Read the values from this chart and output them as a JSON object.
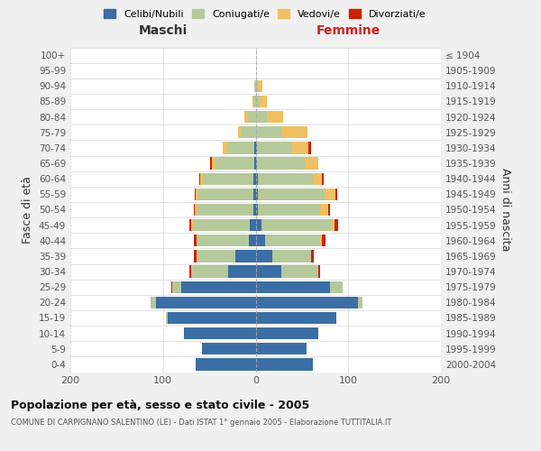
{
  "age_groups": [
    "0-4",
    "5-9",
    "10-14",
    "15-19",
    "20-24",
    "25-29",
    "30-34",
    "35-39",
    "40-44",
    "45-49",
    "50-54",
    "55-59",
    "60-64",
    "65-69",
    "70-74",
    "75-79",
    "80-84",
    "85-89",
    "90-94",
    "95-99",
    "100+"
  ],
  "birth_years": [
    "2000-2004",
    "1995-1999",
    "1990-1994",
    "1985-1989",
    "1980-1984",
    "1975-1979",
    "1970-1974",
    "1965-1969",
    "1960-1964",
    "1955-1959",
    "1950-1954",
    "1945-1949",
    "1940-1944",
    "1935-1939",
    "1930-1934",
    "1925-1929",
    "1920-1924",
    "1915-1919",
    "1910-1914",
    "1905-1909",
    "≤ 1904"
  ],
  "maschi_celibi": [
    65,
    58,
    77,
    95,
    108,
    80,
    30,
    22,
    7,
    6,
    2,
    2,
    2,
    1,
    1,
    0,
    0,
    0,
    0,
    0,
    0
  ],
  "maschi_coniugati": [
    0,
    0,
    0,
    2,
    5,
    10,
    40,
    42,
    57,
    62,
    62,
    60,
    55,
    42,
    30,
    16,
    8,
    2,
    1,
    0,
    0
  ],
  "maschi_vedovi": [
    0,
    0,
    0,
    0,
    0,
    0,
    0,
    0,
    0,
    2,
    2,
    3,
    3,
    4,
    5,
    3,
    4,
    1,
    0,
    0,
    0
  ],
  "maschi_divorziati": [
    0,
    0,
    0,
    0,
    0,
    1,
    2,
    3,
    3,
    2,
    1,
    1,
    1,
    2,
    0,
    0,
    0,
    0,
    0,
    0,
    0
  ],
  "femmine_nubili": [
    62,
    55,
    68,
    87,
    110,
    80,
    28,
    18,
    10,
    6,
    2,
    2,
    2,
    1,
    1,
    0,
    0,
    0,
    0,
    0,
    0
  ],
  "femmine_coniugate": [
    0,
    0,
    0,
    0,
    5,
    14,
    40,
    42,
    60,
    75,
    68,
    72,
    60,
    52,
    38,
    28,
    12,
    4,
    2,
    0,
    0
  ],
  "femmine_vedove": [
    0,
    0,
    0,
    0,
    0,
    0,
    0,
    0,
    2,
    4,
    8,
    12,
    10,
    15,
    18,
    28,
    18,
    8,
    5,
    0,
    0
  ],
  "femmine_divorziate": [
    0,
    0,
    0,
    0,
    0,
    0,
    2,
    3,
    3,
    4,
    2,
    2,
    1,
    0,
    3,
    0,
    0,
    0,
    0,
    0,
    0
  ],
  "colors_celibi": "#3a6ea5",
  "colors_coniugati": "#b5c99a",
  "colors_vedovi": "#f0c060",
  "colors_divorziati": "#cc2200",
  "xlim": 200,
  "bg_color": "#f0f0f0",
  "plot_bg": "#ffffff",
  "title": "Popolazione per età, sesso e stato civile - 2005",
  "subtitle": "COMUNE DI CARPIGNANO SALENTINO (LE) - Dati ISTAT 1° gennaio 2005 - Elaborazione TUTTITALIA.IT",
  "maschi_label": "Maschi",
  "femmine_label": "Femmine",
  "fasce_label": "Fasce di età",
  "anni_label": "Anni di nascita",
  "legend_labels": [
    "Celibi/Nubili",
    "Coniugati/e",
    "Vedovi/e",
    "Divorziati/e"
  ]
}
